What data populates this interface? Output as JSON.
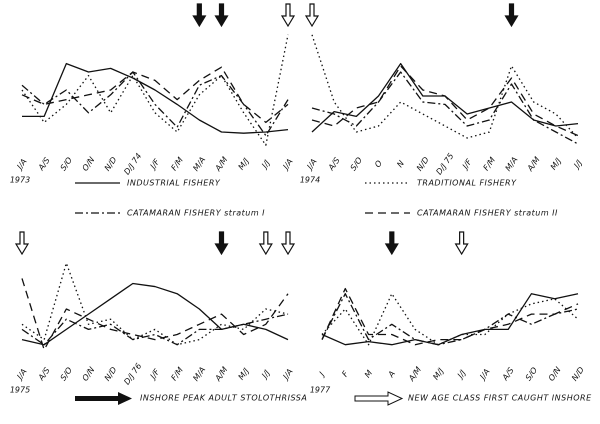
{
  "chart_data": [
    {
      "type": "line",
      "year_label": "1973",
      "categories": [
        "J/A",
        "A/S",
        "S/O",
        "O/N",
        "N/D",
        "D/J 74",
        "J/F",
        "F/M",
        "M/A",
        "A/M",
        "M/J",
        "J/J",
        "J/A"
      ],
      "ylim": [
        0,
        100
      ],
      "peak_arrows": [
        8,
        9
      ],
      "new_class_arrows": [
        12
      ],
      "series": [
        {
          "name": "INDUSTRIAL FISHERY",
          "color": "#111",
          "dash": "none",
          "values": [
            28,
            28,
            72,
            65,
            68,
            60,
            50,
            38,
            25,
            15,
            14,
            15,
            17
          ]
        },
        {
          "name": "TRADITIONAL FISHERY",
          "color": "#111",
          "dash": "1.5,3",
          "values": [
            50,
            23,
            38,
            62,
            31,
            62,
            31,
            15,
            46,
            62,
            31,
            4,
            96
          ]
        },
        {
          "name": "CATAMARAN FISHERY stratum I",
          "color": "#111",
          "dash": "8,3,2,3",
          "values": [
            54,
            38,
            50,
            31,
            46,
            65,
            38,
            19,
            54,
            62,
            38,
            12,
            42
          ]
        },
        {
          "name": "CATAMARAN FISHERY stratum II",
          "color": "#111",
          "dash": "8,5",
          "values": [
            46,
            38,
            42,
            46,
            50,
            65,
            58,
            42,
            58,
            69,
            38,
            23,
            38
          ]
        }
      ]
    },
    {
      "type": "line",
      "year_label": "1974",
      "categories": [
        "J/A",
        "A/S",
        "S/O",
        "O",
        "N",
        "N/D",
        "D/J 75",
        "J/F",
        "F/M",
        "M/A",
        "A/M",
        "M/J",
        "J/J"
      ],
      "ylim": [
        0,
        100
      ],
      "peak_arrows": [
        9
      ],
      "new_class_arrows": [
        0
      ],
      "series": [
        {
          "name": "INDUSTRIAL FISHERY",
          "color": "#111",
          "dash": "none",
          "values": [
            15,
            32,
            28,
            45,
            72,
            45,
            45,
            30,
            35,
            40,
            25,
            20,
            22
          ]
        },
        {
          "name": "TRADITIONAL FISHERY",
          "color": "#111",
          "dash": "1.5,3",
          "values": [
            96,
            40,
            15,
            20,
            40,
            30,
            20,
            10,
            15,
            70,
            40,
            30,
            10
          ]
        },
        {
          "name": "CATAMARAN FISHERY stratum I",
          "color": "#111",
          "dash": "8,3,2,3",
          "values": [
            35,
            30,
            20,
            40,
            65,
            40,
            38,
            20,
            25,
            55,
            25,
            15,
            5
          ]
        },
        {
          "name": "CATAMARAN FISHERY stratum II",
          "color": "#111",
          "dash": "8,5",
          "values": [
            25,
            20,
            35,
            40,
            70,
            50,
            45,
            25,
            35,
            60,
            30,
            20,
            12
          ]
        }
      ]
    },
    {
      "type": "line",
      "year_label": "1975",
      "categories": [
        "J/A",
        "A/S",
        "S/O",
        "O/N",
        "N/D",
        "D/J 76",
        "J/F",
        "F/M",
        "M/A",
        "A/M",
        "M/J",
        "J/J",
        "J/A"
      ],
      "ylim": [
        0,
        100
      ],
      "peak_arrows": [
        9
      ],
      "new_class_arrows": [
        0,
        11,
        12
      ],
      "series": [
        {
          "name": "INDUSTRIAL FISHERY",
          "color": "#111",
          "dash": "none",
          "values": [
            20,
            15,
            30,
            45,
            60,
            75,
            72,
            65,
            50,
            30,
            35,
            30,
            20
          ]
        },
        {
          "name": "TRADITIONAL FISHERY",
          "color": "#111",
          "dash": "1.5,3",
          "values": [
            35,
            20,
            95,
            35,
            40,
            20,
            30,
            15,
            20,
            35,
            30,
            50,
            45
          ]
        },
        {
          "name": "CATAMARAN FISHERY stratum I",
          "color": "#111",
          "dash": "8,3,2,3",
          "values": [
            30,
            15,
            40,
            30,
            35,
            20,
            25,
            15,
            30,
            30,
            35,
            40,
            45
          ]
        },
        {
          "name": "CATAMARAN FISHERY stratum II",
          "color": "#111",
          "dash": "8,5",
          "values": [
            80,
            10,
            50,
            40,
            30,
            25,
            20,
            25,
            35,
            45,
            25,
            35,
            65
          ]
        }
      ]
    },
    {
      "type": "line",
      "year_label": "1977",
      "categories": [
        "J",
        "F",
        "M",
        "A",
        "A/M",
        "M/J",
        "J/J",
        "J/A",
        "A/S",
        "S/O",
        "O/N",
        "N/D"
      ],
      "ylim": [
        0,
        100
      ],
      "peak_arrows": [
        3
      ],
      "new_class_arrows": [
        6
      ],
      "series": [
        {
          "name": "INDUSTRIAL FISHERY",
          "color": "#111",
          "dash": "none",
          "values": [
            25,
            15,
            18,
            15,
            20,
            15,
            25,
            30,
            30,
            65,
            60,
            65
          ]
        },
        {
          "name": "TRADITIONAL FISHERY",
          "color": "#111",
          "dash": "1.5,3",
          "values": [
            25,
            50,
            15,
            65,
            30,
            15,
            25,
            25,
            45,
            55,
            60,
            40
          ]
        },
        {
          "name": "CATAMARAN FISHERY stratum I",
          "color": "#111",
          "dash": "8,3,2,3",
          "values": [
            20,
            65,
            20,
            35,
            20,
            15,
            20,
            30,
            45,
            35,
            45,
            50
          ]
        },
        {
          "name": "CATAMARAN FISHERY stratum II",
          "color": "#111",
          "dash": "8,5",
          "values": [
            20,
            70,
            25,
            25,
            15,
            20,
            20,
            30,
            35,
            45,
            45,
            55
          ]
        }
      ]
    }
  ],
  "arrow_legend": {
    "peak": "INSHORE PEAK ADULT STOLOTHRISSA",
    "new_class": "NEW AGE CLASS FIRST CAUGHT INSHORE"
  }
}
